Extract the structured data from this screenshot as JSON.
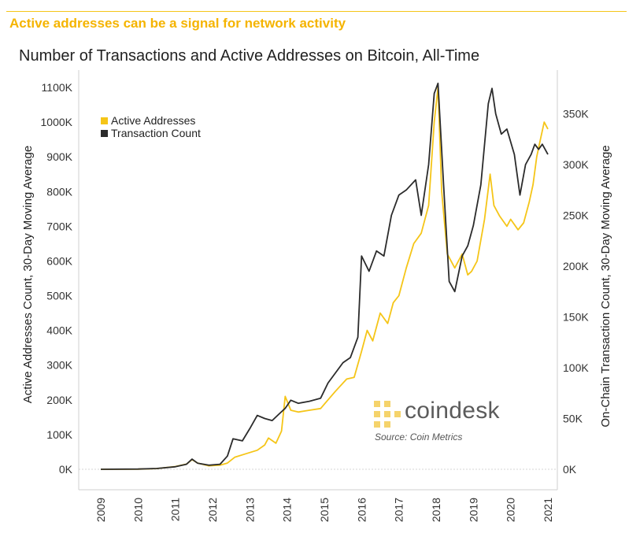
{
  "headline": "Active addresses can be a signal for network activity",
  "chart_data": {
    "type": "line",
    "title": "Number of Transactions and Active Addresses on Bitcoin, All-Time",
    "ylabel_left": "Active Addresses Count, 30-Day Moving Average",
    "ylabel_right": "On-Chain Transaction Count, 30-Day Moving Average",
    "left_ticks": [
      "0K",
      "100K",
      "200K",
      "300K",
      "400K",
      "500K",
      "600K",
      "700K",
      "800K",
      "900K",
      "1000K",
      "1100K"
    ],
    "right_ticks": [
      "0K",
      "50K",
      "100K",
      "150K",
      "200K",
      "250K",
      "300K",
      "350K"
    ],
    "x_ticks": [
      "2009",
      "2010",
      "2011",
      "2012",
      "2013",
      "2014",
      "2015",
      "2016",
      "2017",
      "2018",
      "2019",
      "2020",
      "2021"
    ],
    "ylim_left": [
      0,
      1100000
    ],
    "ylim_right": [
      0,
      376000
    ],
    "xlim": [
      2009,
      2021
    ],
    "legend_position": "top-left",
    "series": [
      {
        "name": "Active Addresses",
        "axis": "left",
        "color": "#f5c518",
        "points": [
          [
            2009.0,
            0
          ],
          [
            2010.0,
            500
          ],
          [
            2010.5,
            2000
          ],
          [
            2011.0,
            8000
          ],
          [
            2011.3,
            15000
          ],
          [
            2011.45,
            28000
          ],
          [
            2011.6,
            18000
          ],
          [
            2011.9,
            10000
          ],
          [
            2012.2,
            12000
          ],
          [
            2012.4,
            18000
          ],
          [
            2012.6,
            35000
          ],
          [
            2012.9,
            45000
          ],
          [
            2013.2,
            55000
          ],
          [
            2013.4,
            70000
          ],
          [
            2013.5,
            90000
          ],
          [
            2013.7,
            75000
          ],
          [
            2013.85,
            110000
          ],
          [
            2013.95,
            210000
          ],
          [
            2014.1,
            170000
          ],
          [
            2014.3,
            165000
          ],
          [
            2014.6,
            170000
          ],
          [
            2014.9,
            175000
          ],
          [
            2015.1,
            200000
          ],
          [
            2015.3,
            225000
          ],
          [
            2015.6,
            260000
          ],
          [
            2015.8,
            265000
          ],
          [
            2016.0,
            340000
          ],
          [
            2016.15,
            400000
          ],
          [
            2016.3,
            370000
          ],
          [
            2016.5,
            450000
          ],
          [
            2016.7,
            420000
          ],
          [
            2016.85,
            480000
          ],
          [
            2017.0,
            500000
          ],
          [
            2017.2,
            580000
          ],
          [
            2017.4,
            650000
          ],
          [
            2017.6,
            680000
          ],
          [
            2017.8,
            760000
          ],
          [
            2017.95,
            1000000
          ],
          [
            2018.05,
            1100000
          ],
          [
            2018.15,
            800000
          ],
          [
            2018.3,
            620000
          ],
          [
            2018.5,
            580000
          ],
          [
            2018.7,
            620000
          ],
          [
            2018.85,
            560000
          ],
          [
            2018.95,
            570000
          ],
          [
            2019.1,
            600000
          ],
          [
            2019.3,
            720000
          ],
          [
            2019.45,
            850000
          ],
          [
            2019.55,
            760000
          ],
          [
            2019.7,
            730000
          ],
          [
            2019.9,
            700000
          ],
          [
            2020.0,
            720000
          ],
          [
            2020.2,
            690000
          ],
          [
            2020.35,
            710000
          ],
          [
            2020.5,
            770000
          ],
          [
            2020.6,
            820000
          ],
          [
            2020.7,
            900000
          ],
          [
            2020.8,
            950000
          ],
          [
            2020.9,
            1000000
          ],
          [
            2021.0,
            980000
          ]
        ]
      },
      {
        "name": "Transaction Count",
        "axis": "right",
        "color": "#2b2b2b",
        "points": [
          [
            2009.0,
            0
          ],
          [
            2010.0,
            200
          ],
          [
            2010.5,
            800
          ],
          [
            2011.0,
            2500
          ],
          [
            2011.3,
            5000
          ],
          [
            2011.45,
            10000
          ],
          [
            2011.6,
            6000
          ],
          [
            2011.9,
            4000
          ],
          [
            2012.2,
            5000
          ],
          [
            2012.4,
            13000
          ],
          [
            2012.55,
            30000
          ],
          [
            2012.8,
            28000
          ],
          [
            2013.0,
            40000
          ],
          [
            2013.2,
            53000
          ],
          [
            2013.4,
            50000
          ],
          [
            2013.6,
            48000
          ],
          [
            2013.8,
            55000
          ],
          [
            2013.95,
            60000
          ],
          [
            2014.1,
            68000
          ],
          [
            2014.3,
            65000
          ],
          [
            2014.6,
            67000
          ],
          [
            2014.9,
            70000
          ],
          [
            2015.1,
            85000
          ],
          [
            2015.3,
            95000
          ],
          [
            2015.5,
            105000
          ],
          [
            2015.7,
            110000
          ],
          [
            2015.9,
            130000
          ],
          [
            2016.0,
            210000
          ],
          [
            2016.2,
            195000
          ],
          [
            2016.4,
            215000
          ],
          [
            2016.6,
            210000
          ],
          [
            2016.8,
            250000
          ],
          [
            2017.0,
            270000
          ],
          [
            2017.2,
            275000
          ],
          [
            2017.45,
            285000
          ],
          [
            2017.6,
            250000
          ],
          [
            2017.8,
            300000
          ],
          [
            2017.95,
            370000
          ],
          [
            2018.05,
            380000
          ],
          [
            2018.2,
            280000
          ],
          [
            2018.35,
            185000
          ],
          [
            2018.5,
            175000
          ],
          [
            2018.7,
            210000
          ],
          [
            2018.85,
            220000
          ],
          [
            2019.0,
            240000
          ],
          [
            2019.2,
            280000
          ],
          [
            2019.4,
            360000
          ],
          [
            2019.5,
            375000
          ],
          [
            2019.6,
            350000
          ],
          [
            2019.75,
            330000
          ],
          [
            2019.9,
            335000
          ],
          [
            2020.1,
            310000
          ],
          [
            2020.25,
            270000
          ],
          [
            2020.4,
            300000
          ],
          [
            2020.55,
            310000
          ],
          [
            2020.65,
            320000
          ],
          [
            2020.75,
            315000
          ],
          [
            2020.85,
            320000
          ],
          [
            2021.0,
            310000
          ]
        ]
      }
    ],
    "watermark": "coindesk",
    "source": "Source: Coin Metrics"
  }
}
